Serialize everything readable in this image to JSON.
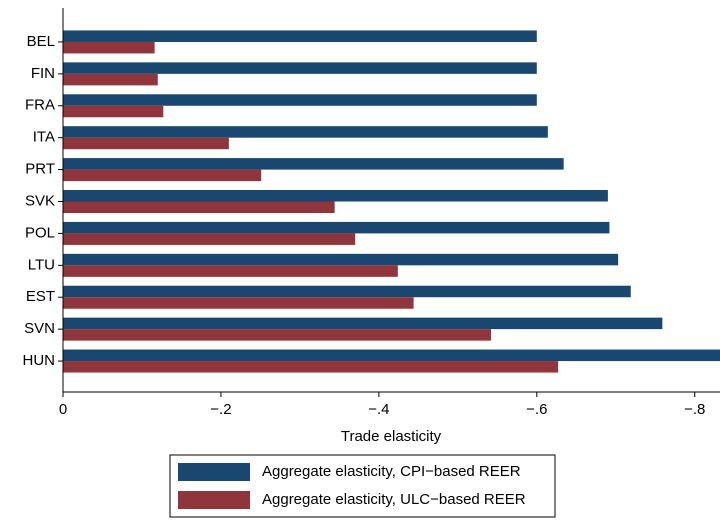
{
  "chart_data": {
    "type": "barh",
    "categories": [
      "BEL",
      "FIN",
      "FRA",
      "ITA",
      "PRT",
      "SVK",
      "POL",
      "LTU",
      "EST",
      "SVN",
      "HUN"
    ],
    "series": [
      {
        "name": "Aggregate elasticity, CPI−based REER",
        "color": "#1a476f",
        "values": [
          -0.6,
          -0.6,
          -0.6,
          -0.614,
          -0.634,
          -0.69,
          -0.692,
          -0.703,
          -0.719,
          -0.759,
          -0.84
        ]
      },
      {
        "name": "Aggregate elasticity, ULC−based REER",
        "color": "#90353b",
        "values": [
          -0.116,
          -0.12,
          -0.127,
          -0.21,
          -0.251,
          -0.344,
          -0.37,
          -0.424,
          -0.444,
          -0.542,
          -0.627
        ]
      }
    ],
    "xlabel": "Trade elasticity",
    "xlim": [
      0,
      -0.832
    ],
    "xticks": [
      0,
      {
        "value": -0.2,
        "label": "−.2"
      },
      {
        "value": -0.4,
        "label": "−.4"
      },
      {
        "value": -0.6,
        "label": "−.6"
      },
      {
        "value": -0.8,
        "label": "−.8"
      }
    ],
    "legend": "bottom"
  }
}
